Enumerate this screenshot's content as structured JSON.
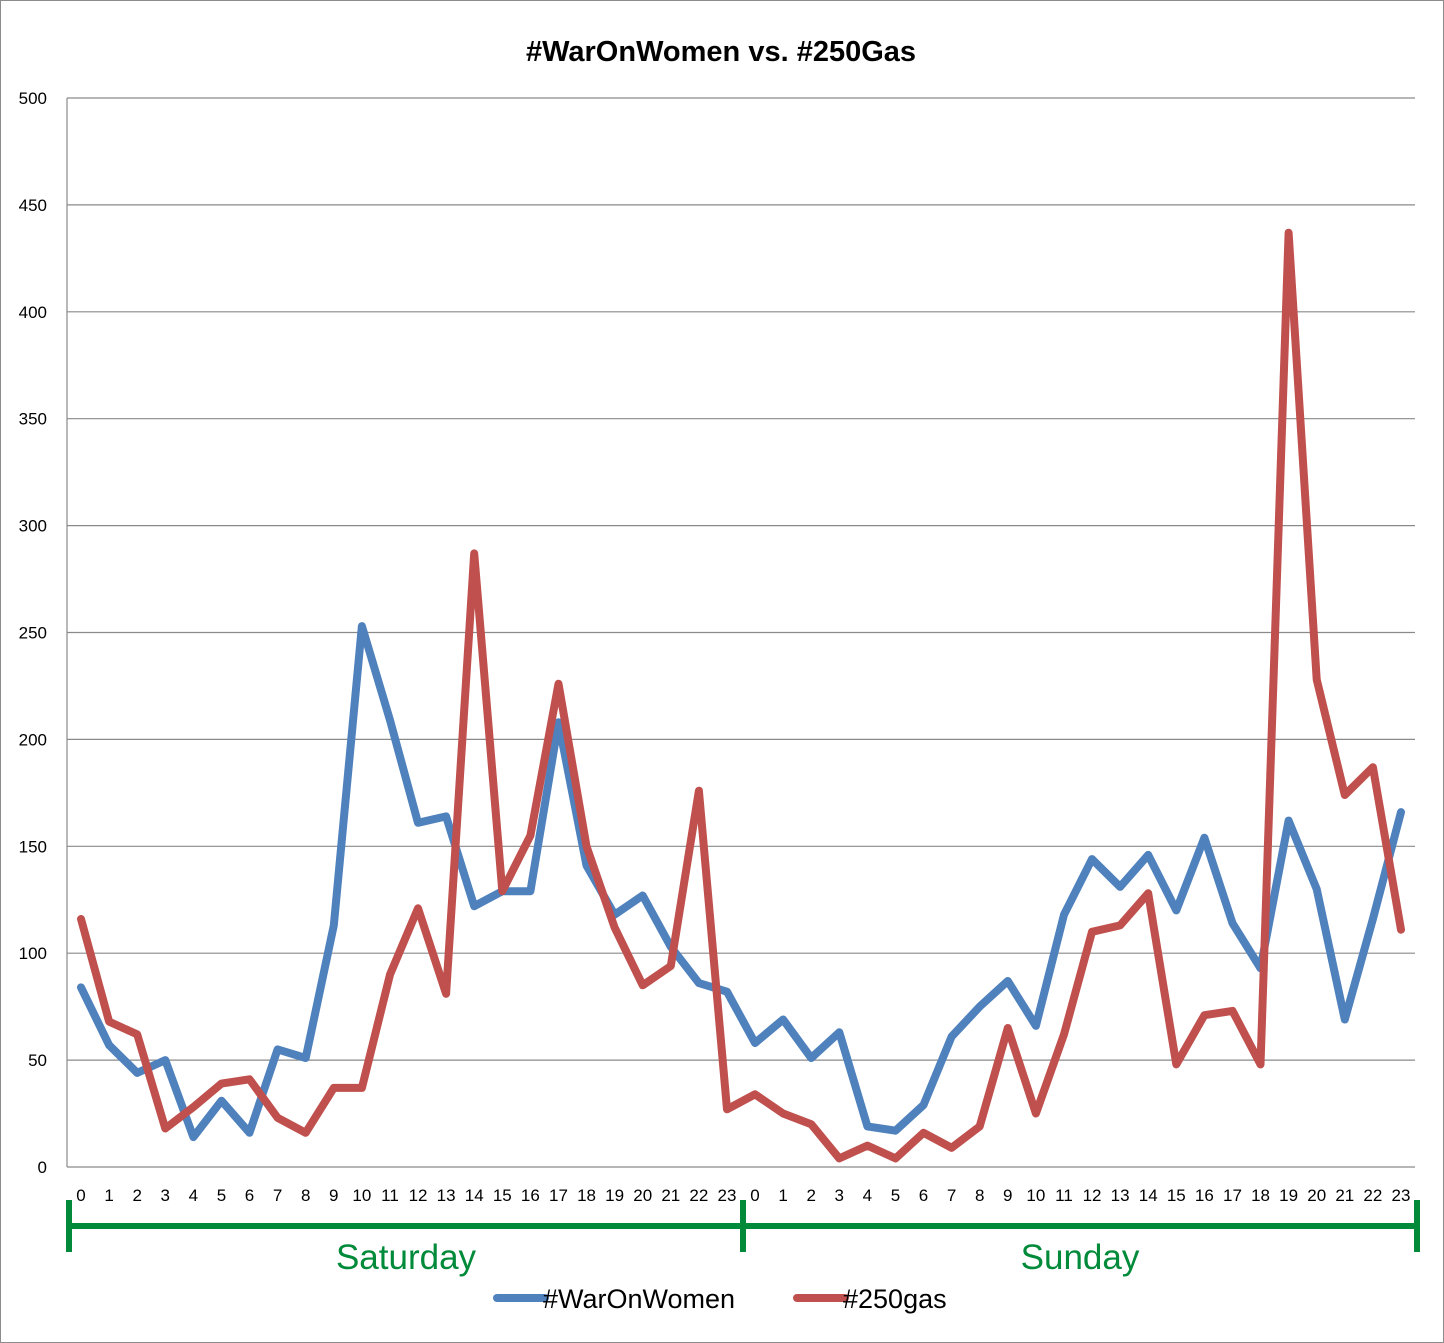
{
  "chart_data": {
    "type": "line",
    "title": "#WarOnWomen vs. #250Gas",
    "xlabel": "",
    "ylabel": "",
    "ylim": [
      0,
      500
    ],
    "yticks": [
      0,
      50,
      100,
      150,
      200,
      250,
      300,
      350,
      400,
      450,
      500
    ],
    "grid": true,
    "legend_position": "bottom",
    "categories": [
      "0",
      "1",
      "2",
      "3",
      "4",
      "5",
      "6",
      "7",
      "8",
      "9",
      "10",
      "11",
      "12",
      "13",
      "14",
      "15",
      "16",
      "17",
      "18",
      "19",
      "20",
      "21",
      "22",
      "23",
      "0",
      "1",
      "2",
      "3",
      "4",
      "5",
      "6",
      "7",
      "8",
      "9",
      "10",
      "11",
      "12",
      "13",
      "14",
      "15",
      "16",
      "17",
      "18",
      "19",
      "20",
      "21",
      "22",
      "23"
    ],
    "groups": [
      {
        "label": "Saturday",
        "color": "#008a3a"
      },
      {
        "label": "Sunday",
        "color": "#008a3a"
      }
    ],
    "series": [
      {
        "name": "#WarOnWomen",
        "color": "#4f81bd",
        "values": [
          84,
          57,
          44,
          50,
          14,
          31,
          16,
          55,
          51,
          113,
          253,
          209,
          161,
          164,
          122,
          129,
          129,
          208,
          141,
          118,
          127,
          103,
          86,
          82,
          58,
          69,
          51,
          63,
          19,
          17,
          29,
          61,
          75,
          87,
          66,
          118,
          144,
          131,
          146,
          120,
          154,
          114,
          93,
          162,
          130,
          69,
          116,
          166
        ]
      },
      {
        "name": "#250gas",
        "color": "#c0504d",
        "values": [
          116,
          68,
          62,
          18,
          28,
          39,
          41,
          23,
          16,
          37,
          37,
          90,
          121,
          81,
          287,
          129,
          155,
          226,
          150,
          112,
          85,
          94,
          176,
          27,
          34,
          25,
          20,
          4,
          10,
          4,
          16,
          9,
          19,
          65,
          25,
          62,
          110,
          113,
          128,
          48,
          71,
          73,
          48,
          437,
          228,
          174,
          187,
          111
        ]
      }
    ]
  }
}
